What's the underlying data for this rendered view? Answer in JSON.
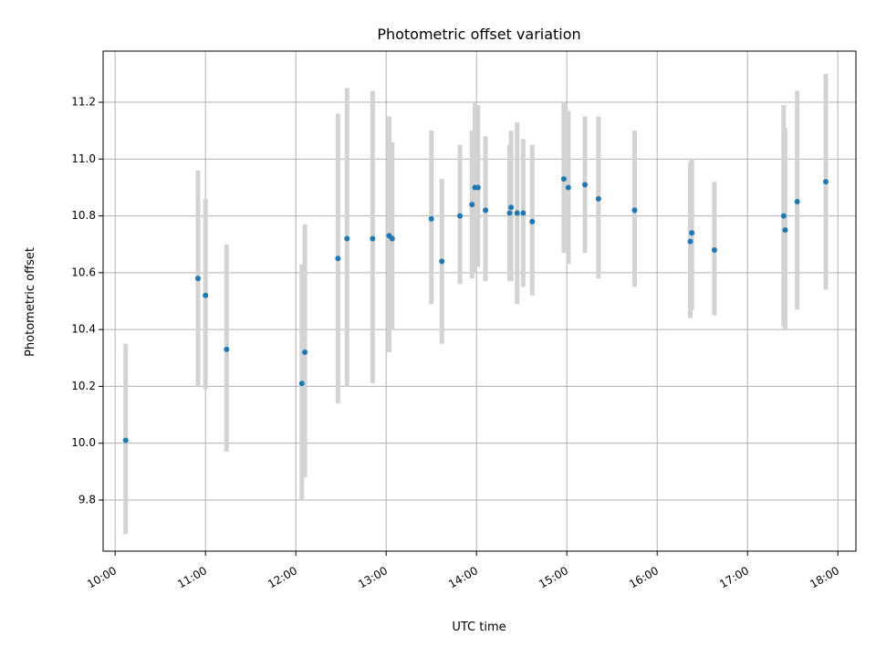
{
  "chart_data": {
    "type": "scatter",
    "title": "Photometric offset variation",
    "xlabel": "UTC time",
    "ylabel": "Photometric offset",
    "xlim": [
      "09:52",
      "18:12"
    ],
    "ylim": [
      9.62,
      11.38
    ],
    "x_ticks": [
      "10:00",
      "11:00",
      "12:00",
      "13:00",
      "14:00",
      "15:00",
      "16:00",
      "17:00",
      "18:00"
    ],
    "y_ticks": [
      "9.8",
      "10.0",
      "10.2",
      "10.4",
      "10.6",
      "10.8",
      "11.0",
      "11.2"
    ],
    "grid": true,
    "colors": {
      "point": "#1f77b4",
      "errorbar": "#d3d3d3",
      "grid": "#b0b0b0"
    },
    "points": [
      {
        "x": "10:07",
        "y": 10.01,
        "err_low": 9.68,
        "err_high": 10.35
      },
      {
        "x": "10:55",
        "y": 10.58,
        "err_low": 10.2,
        "err_high": 10.96
      },
      {
        "x": "11:00",
        "y": 10.52,
        "err_low": 10.19,
        "err_high": 10.86
      },
      {
        "x": "11:14",
        "y": 10.33,
        "err_low": 9.97,
        "err_high": 10.7
      },
      {
        "x": "12:04",
        "y": 10.21,
        "err_low": 9.8,
        "err_high": 10.63
      },
      {
        "x": "12:06",
        "y": 10.32,
        "err_low": 9.88,
        "err_high": 10.77
      },
      {
        "x": "12:28",
        "y": 10.65,
        "err_low": 10.14,
        "err_high": 11.16
      },
      {
        "x": "12:34",
        "y": 10.72,
        "err_low": 10.2,
        "err_high": 11.25
      },
      {
        "x": "12:51",
        "y": 10.72,
        "err_low": 10.21,
        "err_high": 11.24
      },
      {
        "x": "13:02",
        "y": 10.73,
        "err_low": 10.32,
        "err_high": 11.15
      },
      {
        "x": "13:04",
        "y": 10.72,
        "err_low": 10.4,
        "err_high": 11.06
      },
      {
        "x": "13:30",
        "y": 10.79,
        "err_low": 10.49,
        "err_high": 11.1
      },
      {
        "x": "13:37",
        "y": 10.64,
        "err_low": 10.35,
        "err_high": 10.93
      },
      {
        "x": "13:49",
        "y": 10.8,
        "err_low": 10.56,
        "err_high": 11.05
      },
      {
        "x": "13:57",
        "y": 10.84,
        "err_low": 10.58,
        "err_high": 11.1
      },
      {
        "x": "13:59",
        "y": 10.9,
        "err_low": 10.6,
        "err_high": 11.2
      },
      {
        "x": "14:01",
        "y": 10.9,
        "err_low": 10.62,
        "err_high": 11.19
      },
      {
        "x": "14:06",
        "y": 10.82,
        "err_low": 10.57,
        "err_high": 11.08
      },
      {
        "x": "14:22",
        "y": 10.81,
        "err_low": 10.57,
        "err_high": 11.05
      },
      {
        "x": "14:23",
        "y": 10.83,
        "err_low": 10.57,
        "err_high": 11.1
      },
      {
        "x": "14:27",
        "y": 10.81,
        "err_low": 10.49,
        "err_high": 11.13
      },
      {
        "x": "14:31",
        "y": 10.81,
        "err_low": 10.55,
        "err_high": 11.07
      },
      {
        "x": "14:37",
        "y": 10.78,
        "err_low": 10.52,
        "err_high": 11.05
      },
      {
        "x": "14:58",
        "y": 10.93,
        "err_low": 10.67,
        "err_high": 11.2
      },
      {
        "x": "15:01",
        "y": 10.9,
        "err_low": 10.63,
        "err_high": 11.17
      },
      {
        "x": "15:12",
        "y": 10.91,
        "err_low": 10.67,
        "err_high": 11.15
      },
      {
        "x": "15:21",
        "y": 10.86,
        "err_low": 10.58,
        "err_high": 11.15
      },
      {
        "x": "15:45",
        "y": 10.82,
        "err_low": 10.55,
        "err_high": 11.1
      },
      {
        "x": "16:22",
        "y": 10.71,
        "err_low": 10.44,
        "err_high": 10.99
      },
      {
        "x": "16:23",
        "y": 10.74,
        "err_low": 10.47,
        "err_high": 11.0
      },
      {
        "x": "16:38",
        "y": 10.68,
        "err_low": 10.45,
        "err_high": 10.92
      },
      {
        "x": "17:24",
        "y": 10.8,
        "err_low": 10.41,
        "err_high": 11.19
      },
      {
        "x": "17:25",
        "y": 10.75,
        "err_low": 10.4,
        "err_high": 11.11
      },
      {
        "x": "17:33",
        "y": 10.85,
        "err_low": 10.47,
        "err_high": 11.24
      },
      {
        "x": "17:52",
        "y": 10.92,
        "err_low": 10.54,
        "err_high": 11.3
      }
    ]
  }
}
